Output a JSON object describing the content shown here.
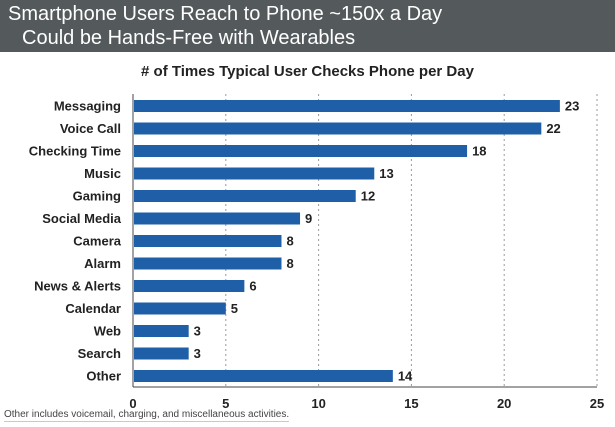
{
  "banner": {
    "line1": "Smartphone Users Reach to Phone ~150x a Day",
    "line2": "Could be Hands-Free with Wearables"
  },
  "footnote": "Other includes voicemail, charging, and miscellaneous activities.",
  "colors": {
    "bar": "#1f5fa8",
    "banner": "#545a5c",
    "grid": "#9a9a9a"
  },
  "chart_data": {
    "type": "bar",
    "orientation": "horizontal",
    "title": "# of Times Typical User Checks Phone per Day",
    "categories": [
      "Messaging",
      "Voice Call",
      "Checking Time",
      "Music",
      "Gaming",
      "Social Media",
      "Camera",
      "Alarm",
      "News & Alerts",
      "Calendar",
      "Web",
      "Search",
      "Other"
    ],
    "values": [
      23,
      22,
      18,
      13,
      12,
      9,
      8,
      8,
      6,
      5,
      3,
      3,
      14
    ],
    "xlim": [
      0,
      25
    ],
    "xticks": [
      0,
      5,
      10,
      15,
      20,
      25
    ],
    "grid": "vertical dashed",
    "data_labels": true
  }
}
